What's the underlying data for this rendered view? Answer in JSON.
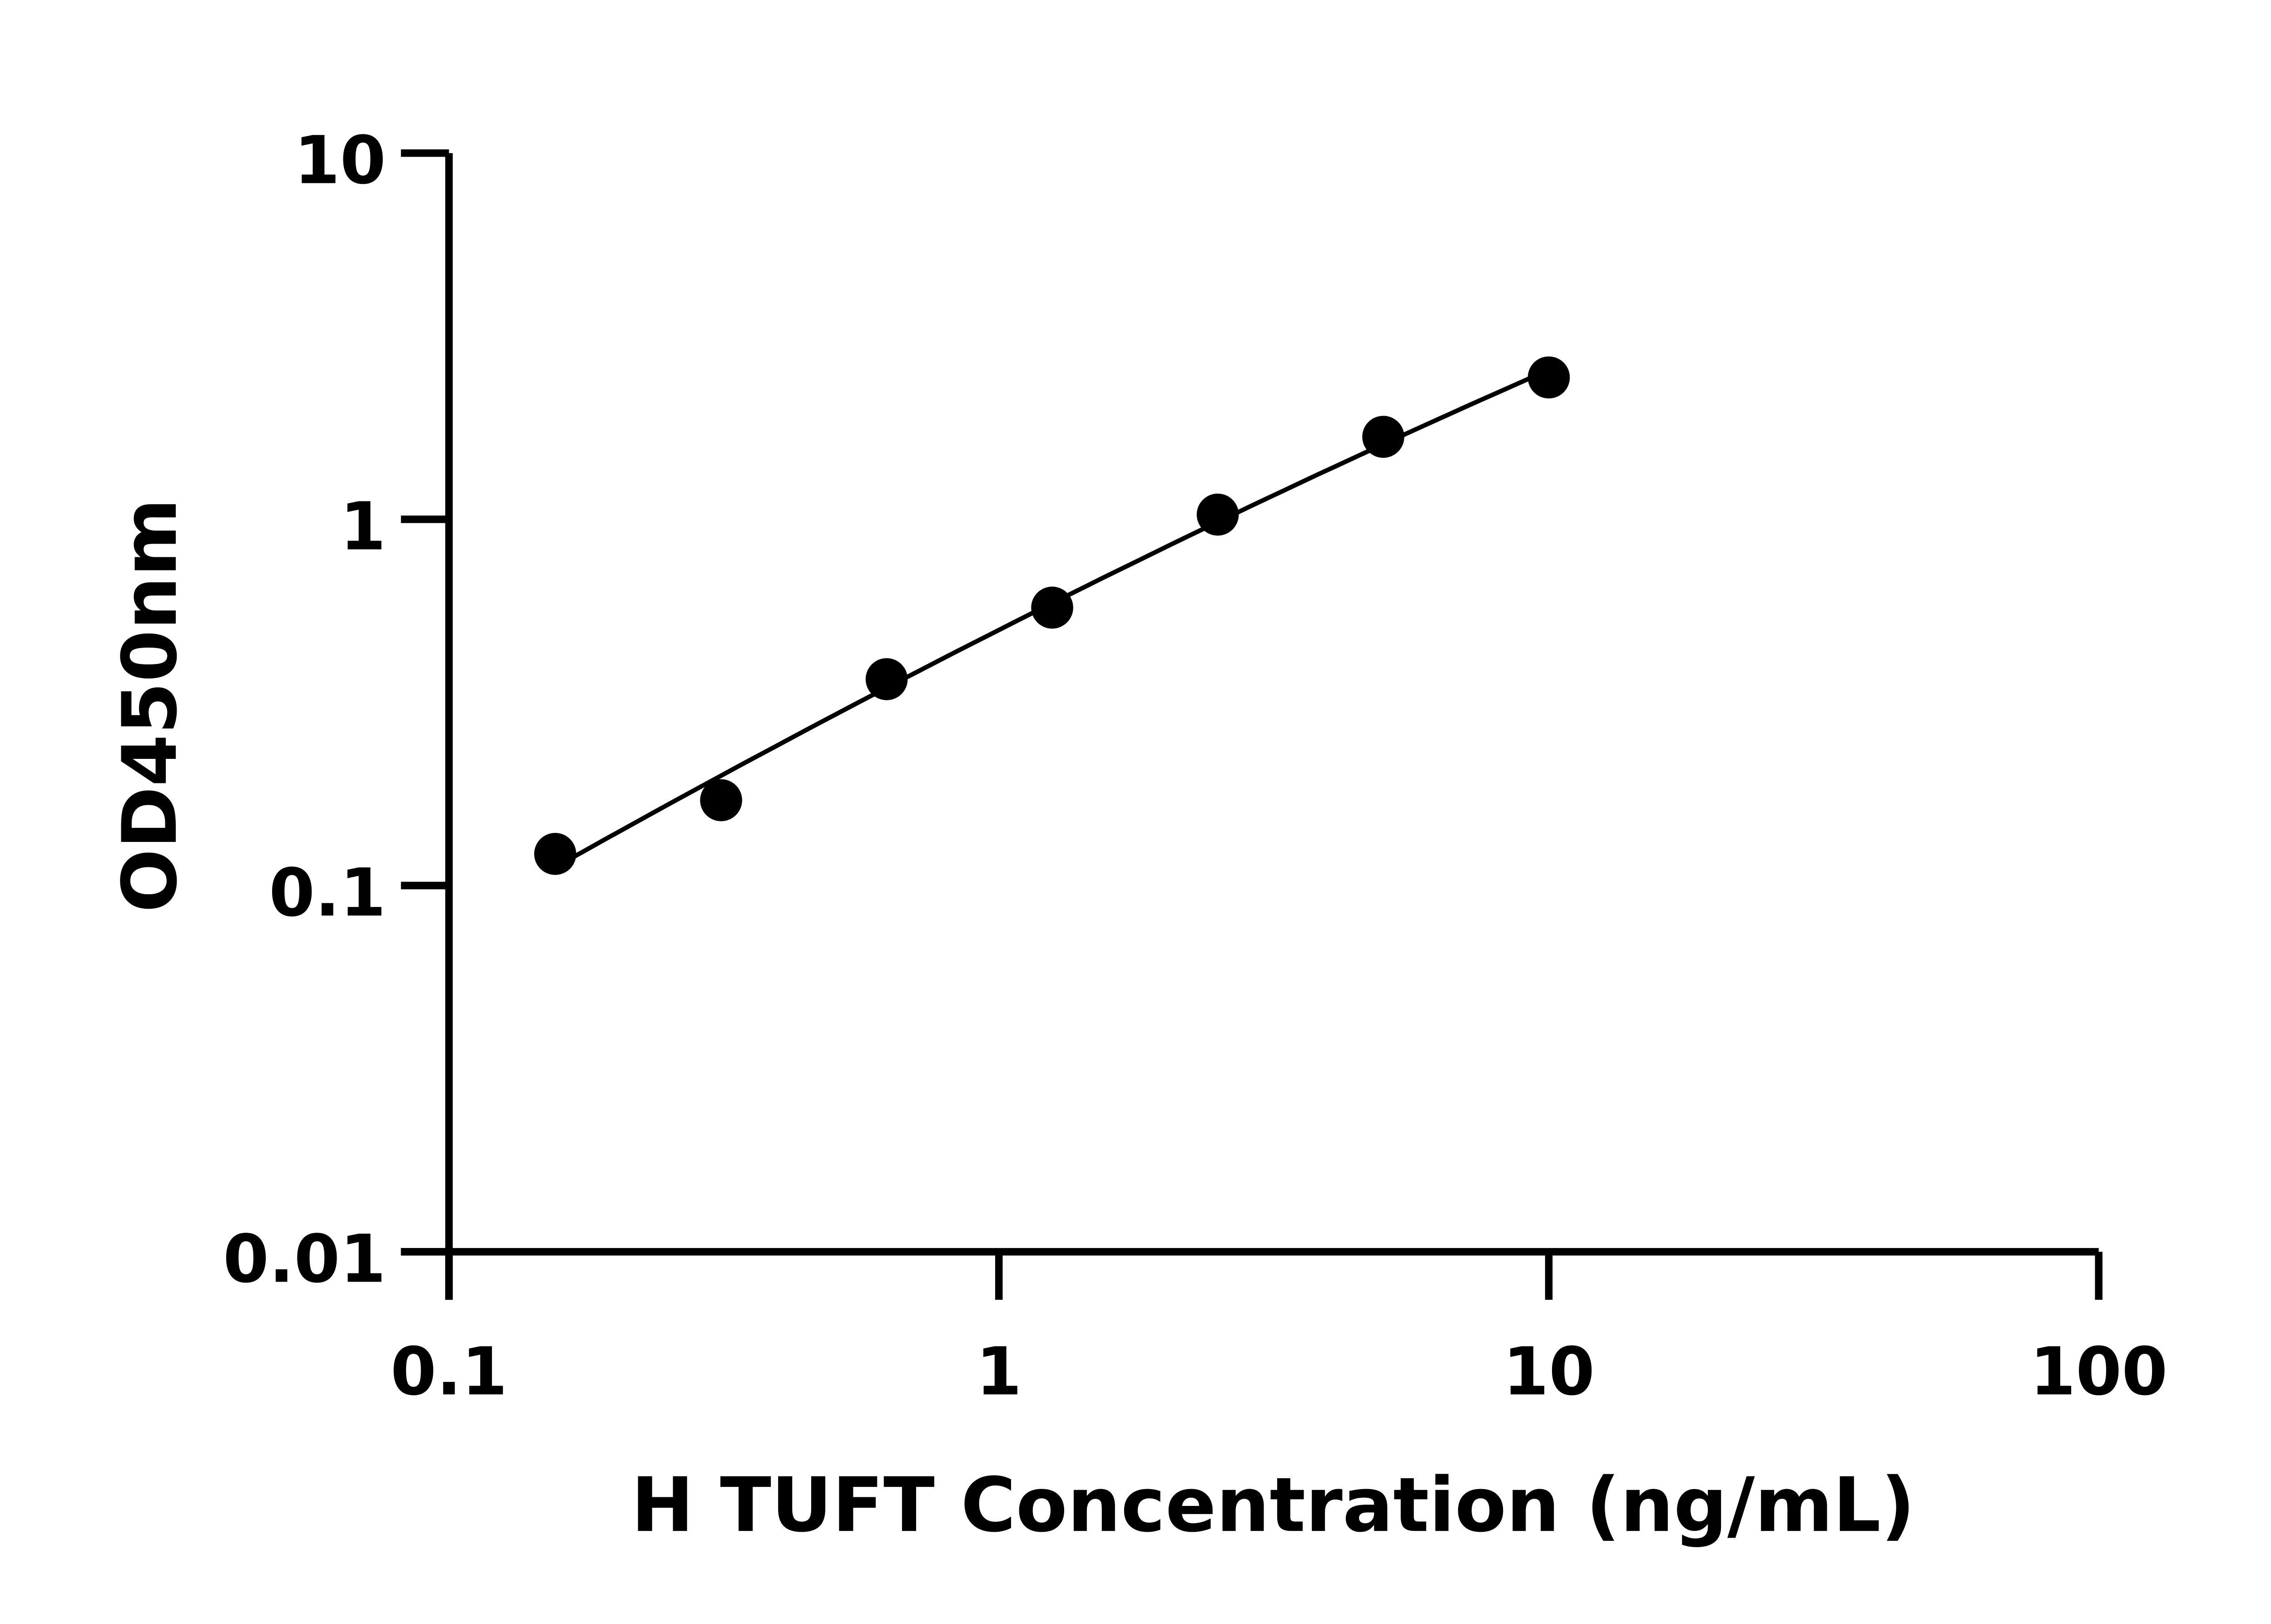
{
  "chart_data": {
    "type": "scatter",
    "title": "",
    "xlabel": "H TUFT Concentration (ng/mL)",
    "ylabel": "OD450nm",
    "x_scale": "log",
    "y_scale": "log",
    "xlim": [
      0.1,
      100
    ],
    "ylim": [
      0.01,
      10
    ],
    "x_ticks": [
      0.1,
      1,
      10,
      100
    ],
    "x_tick_labels": [
      "0.1",
      "1",
      "10",
      "100"
    ],
    "y_ticks": [
      0.01,
      0.1,
      1,
      10
    ],
    "y_tick_labels": [
      "0.01",
      "0.1",
      "1",
      "10"
    ],
    "grid": false,
    "legend": "none",
    "colors": {
      "points": "#000000",
      "line": "#000000",
      "axes": "#000000"
    },
    "series": [
      {
        "x": [
          0.156,
          0.3125,
          0.625,
          1.25,
          2.5,
          5,
          10
        ],
        "y": [
          0.122,
          0.171,
          0.366,
          0.574,
          1.03,
          1.68,
          2.44
        ],
        "fit_line": true
      }
    ]
  }
}
